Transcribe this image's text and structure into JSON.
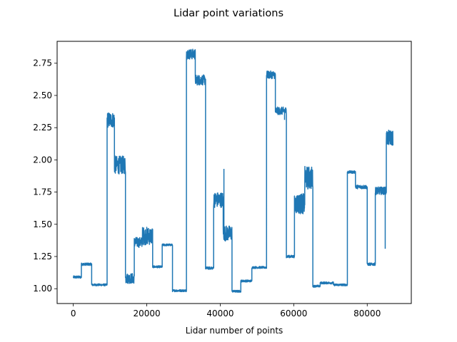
{
  "chart_data": {
    "type": "line",
    "title": "Lidar point variations",
    "xlabel": "Lidar number of points",
    "ylabel": "",
    "xlim": [
      -4400,
      92000
    ],
    "ylim": [
      0.885,
      2.92
    ],
    "xticks": [
      0,
      20000,
      40000,
      60000,
      80000
    ],
    "xtick_labels": [
      "0",
      "20000",
      "40000",
      "60000",
      "80000"
    ],
    "yticks": [
      1.0,
      1.25,
      1.5,
      1.75,
      2.0,
      2.25,
      2.5,
      2.75
    ],
    "ytick_labels": [
      "1.00",
      "1.25",
      "1.50",
      "1.75",
      "2.00",
      "2.25",
      "2.50",
      "2.75"
    ],
    "grid": false,
    "color": "#1f77b4",
    "series": [
      {
        "segments": [
          {
            "x0": 0,
            "x1": 2200,
            "y": 1.09,
            "noise": 0.01
          },
          {
            "x0": 2200,
            "x1": 5000,
            "y": 1.19,
            "noise": 0.01
          },
          {
            "x0": 5000,
            "x1": 9200,
            "y": 1.03,
            "noise": 0.008
          },
          {
            "x0": 9200,
            "x1": 11200,
            "y": 2.31,
            "noise": 0.06
          },
          {
            "x0": 11200,
            "x1": 14200,
            "y": 1.96,
            "noise": 0.07
          },
          {
            "x0": 14200,
            "x1": 16600,
            "y": 1.08,
            "noise": 0.04
          },
          {
            "x0": 16600,
            "x1": 18800,
            "y": 1.36,
            "noise": 0.04
          },
          {
            "x0": 18800,
            "x1": 21600,
            "y": 1.41,
            "noise": 0.07
          },
          {
            "x0": 21600,
            "x1": 24200,
            "y": 1.17,
            "noise": 0.008
          },
          {
            "x0": 24200,
            "x1": 27000,
            "y": 1.34,
            "noise": 0.008
          },
          {
            "x0": 27000,
            "x1": 30800,
            "y": 0.985,
            "noise": 0.008
          },
          {
            "x0": 30800,
            "x1": 33200,
            "y": 2.82,
            "noise": 0.04
          },
          {
            "x0": 33200,
            "x1": 36000,
            "y": 2.62,
            "noise": 0.04
          },
          {
            "x0": 36000,
            "x1": 38200,
            "y": 1.16,
            "noise": 0.01
          },
          {
            "x0": 38200,
            "x1": 40800,
            "y": 1.69,
            "noise": 0.06
          },
          {
            "x0": 40800,
            "x1": 43200,
            "y": 1.43,
            "noise": 0.06
          },
          {
            "x0": 43200,
            "x1": 45600,
            "y": 0.98,
            "noise": 0.008
          },
          {
            "x0": 45600,
            "x1": 48600,
            "y": 1.06,
            "noise": 0.008
          },
          {
            "x0": 48600,
            "x1": 52600,
            "y": 1.165,
            "noise": 0.008
          },
          {
            "x0": 52600,
            "x1": 55000,
            "y": 2.66,
            "noise": 0.03
          },
          {
            "x0": 55000,
            "x1": 58000,
            "y": 2.38,
            "noise": 0.03
          },
          {
            "x0": 58000,
            "x1": 60200,
            "y": 1.25,
            "noise": 0.01
          },
          {
            "x0": 60200,
            "x1": 63000,
            "y": 1.66,
            "noise": 0.08
          },
          {
            "x0": 63000,
            "x1": 65200,
            "y": 1.86,
            "noise": 0.09
          },
          {
            "x0": 65200,
            "x1": 67200,
            "y": 1.02,
            "noise": 0.008
          },
          {
            "x0": 67200,
            "x1": 70800,
            "y": 1.045,
            "noise": 0.008
          },
          {
            "x0": 70800,
            "x1": 74600,
            "y": 1.03,
            "noise": 0.008
          },
          {
            "x0": 74600,
            "x1": 76800,
            "y": 1.905,
            "noise": 0.01
          },
          {
            "x0": 76800,
            "x1": 80000,
            "y": 1.79,
            "noise": 0.015
          },
          {
            "x0": 80000,
            "x1": 82200,
            "y": 1.19,
            "noise": 0.01
          },
          {
            "x0": 82200,
            "x1": 85200,
            "y": 1.76,
            "noise": 0.03
          },
          {
            "x0": 85200,
            "x1": 87000,
            "y": 2.17,
            "noise": 0.06
          }
        ],
        "spikes": [
          {
            "x": 41000,
            "y": 1.93
          },
          {
            "x": 84900,
            "y": 1.31
          },
          {
            "x": 57500,
            "y": 2.31
          }
        ]
      }
    ]
  }
}
